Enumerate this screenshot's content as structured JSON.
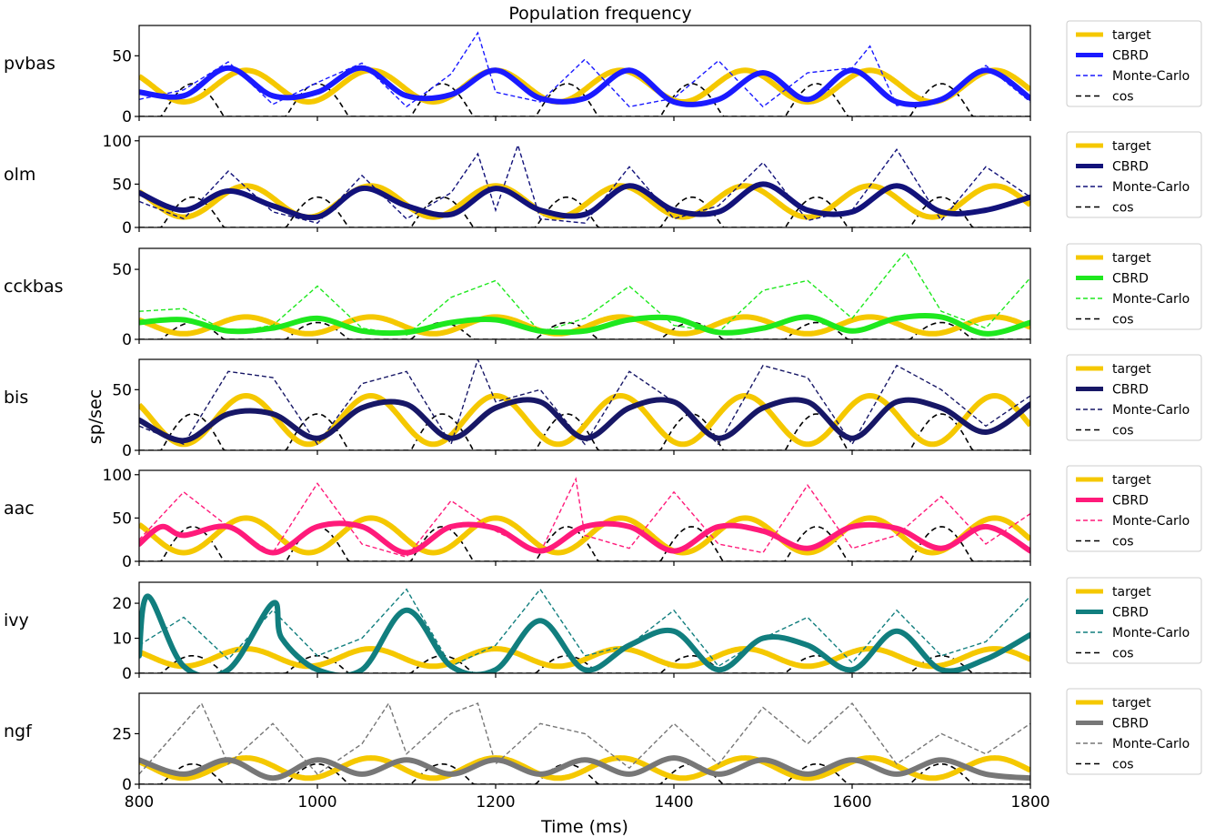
{
  "chart_data": {
    "type": "line",
    "title": "Population frequency",
    "xlabel": "Time (ms)",
    "ylabel": "sp/sec",
    "xlim": [
      800,
      1800
    ],
    "x_ticks": [
      800,
      1000,
      1200,
      1400,
      1600,
      1800
    ],
    "cos_period_ms": 140,
    "legend_position": "right",
    "series_names": [
      "target",
      "CBRD",
      "Monte-Carlo",
      "cos"
    ],
    "panels": [
      {
        "population": "pvbas",
        "ylim": [
          0,
          75
        ],
        "y_ticks": [
          0,
          50
        ],
        "cbrd_color": "#1a1aff",
        "series": {
          "target": {
            "center": 25,
            "amplitude": 13
          },
          "CBRD": {
            "x": [
              800,
              850,
              900,
              950,
              1000,
              1050,
              1100,
              1150,
              1200,
              1250,
              1300,
              1350,
              1400,
              1450,
              1500,
              1550,
              1600,
              1650,
              1700,
              1750,
              1800
            ],
            "y": [
              20,
              17,
              40,
              17,
              20,
              40,
              17,
              18,
              38,
              15,
              15,
              38,
              12,
              14,
              36,
              14,
              38,
              12,
              14,
              38,
              15
            ]
          },
          "Monte-Carlo": {
            "x": [
              800,
              850,
              900,
              950,
              1000,
              1050,
              1100,
              1150,
              1180,
              1200,
              1250,
              1300,
              1350,
              1400,
              1450,
              1500,
              1550,
              1600,
              1620,
              1650,
              1700,
              1750,
              1800
            ],
            "y": [
              14,
              22,
              45,
              10,
              28,
              44,
              8,
              35,
              69,
              20,
              12,
              47,
              8,
              15,
              46,
              8,
              36,
              40,
              58,
              9,
              14,
              42,
              12
            ]
          },
          "cos": {
            "peak": 27,
            "phase_ms": 860
          }
        }
      },
      {
        "population": "olm",
        "ylim": [
          0,
          105
        ],
        "y_ticks": [
          0,
          50,
          100
        ],
        "cbrd_color": "#12127a",
        "series": {
          "target": {
            "center": 30,
            "amplitude": 18
          },
          "CBRD": {
            "x": [
              800,
              850,
              900,
              950,
              1000,
              1050,
              1100,
              1150,
              1200,
              1250,
              1300,
              1350,
              1400,
              1450,
              1500,
              1550,
              1600,
              1650,
              1700,
              1750,
              1800
            ],
            "y": [
              40,
              20,
              42,
              25,
              12,
              45,
              25,
              15,
              45,
              20,
              15,
              48,
              20,
              18,
              50,
              20,
              18,
              48,
              18,
              20,
              35
            ]
          },
          "Monte-Carlo": {
            "x": [
              800,
              850,
              900,
              950,
              1000,
              1050,
              1100,
              1150,
              1180,
              1200,
              1225,
              1250,
              1300,
              1350,
              1400,
              1450,
              1500,
              1550,
              1600,
              1650,
              1700,
              1750,
              1800
            ],
            "y": [
              30,
              10,
              65,
              18,
              5,
              60,
              10,
              40,
              85,
              20,
              95,
              10,
              5,
              70,
              10,
              25,
              75,
              8,
              20,
              90,
              8,
              70,
              35
            ]
          },
          "cos": {
            "peak": 35,
            "phase_ms": 860
          }
        }
      },
      {
        "population": "cckbas",
        "ylim": [
          0,
          65
        ],
        "y_ticks": [
          0,
          50
        ],
        "cbrd_color": "#1ee81e",
        "series": {
          "target": {
            "center": 10,
            "amplitude": 6
          },
          "CBRD": {
            "x": [
              800,
              850,
              900,
              950,
              1000,
              1050,
              1100,
              1150,
              1200,
              1250,
              1300,
              1350,
              1400,
              1450,
              1500,
              1550,
              1600,
              1650,
              1700,
              1750,
              1800
            ],
            "y": [
              12,
              14,
              6,
              8,
              15,
              6,
              5,
              12,
              14,
              6,
              6,
              14,
              15,
              5,
              8,
              16,
              6,
              15,
              16,
              4,
              12
            ]
          },
          "Monte-Carlo": {
            "x": [
              800,
              850,
              900,
              950,
              1000,
              1050,
              1100,
              1150,
              1200,
              1250,
              1300,
              1350,
              1400,
              1450,
              1500,
              1550,
              1600,
              1650,
              1660,
              1700,
              1750,
              1800
            ],
            "y": [
              20,
              22,
              5,
              10,
              38,
              8,
              3,
              30,
              42,
              5,
              15,
              38,
              10,
              5,
              35,
              42,
              15,
              55,
              62,
              20,
              8,
              44
            ]
          },
          "cos": {
            "peak": 12,
            "phase_ms": 860
          }
        }
      },
      {
        "population": "bis",
        "ylim": [
          0,
          75
        ],
        "y_ticks": [
          0,
          50
        ],
        "cbrd_color": "#171766",
        "series": {
          "target": {
            "center": 25,
            "amplitude": 20
          },
          "CBRD": {
            "x": [
              800,
              850,
              900,
              950,
              1000,
              1050,
              1100,
              1150,
              1200,
              1250,
              1300,
              1350,
              1400,
              1450,
              1500,
              1550,
              1600,
              1650,
              1700,
              1750,
              1800
            ],
            "y": [
              25,
              8,
              30,
              30,
              10,
              35,
              38,
              10,
              35,
              40,
              10,
              35,
              40,
              10,
              35,
              40,
              10,
              40,
              35,
              15,
              38
            ]
          },
          "Monte-Carlo": {
            "x": [
              800,
              850,
              900,
              950,
              1000,
              1050,
              1100,
              1150,
              1180,
              1200,
              1250,
              1300,
              1350,
              1400,
              1450,
              1500,
              1550,
              1600,
              1650,
              1700,
              1750,
              1800
            ],
            "y": [
              20,
              5,
              65,
              60,
              5,
              55,
              65,
              5,
              75,
              40,
              50,
              5,
              65,
              40,
              5,
              70,
              60,
              5,
              70,
              50,
              20,
              45
            ]
          },
          "cos": {
            "peak": 30,
            "phase_ms": 860
          }
        }
      },
      {
        "population": "aac",
        "ylim": [
          0,
          105
        ],
        "y_ticks": [
          0,
          50,
          100
        ],
        "cbrd_color": "#ff1a7a",
        "series": {
          "target": {
            "center": 30,
            "amplitude": 20
          },
          "CBRD": {
            "x": [
              800,
              825,
              850,
              900,
              950,
              1000,
              1050,
              1100,
              1150,
              1200,
              1250,
              1300,
              1350,
              1400,
              1450,
              1500,
              1550,
              1600,
              1650,
              1700,
              1750,
              1800
            ],
            "y": [
              20,
              40,
              30,
              40,
              10,
              40,
              40,
              10,
              40,
              38,
              12,
              40,
              40,
              12,
              40,
              35,
              15,
              40,
              38,
              15,
              40,
              12
            ]
          },
          "Monte-Carlo": {
            "x": [
              800,
              850,
              900,
              950,
              1000,
              1050,
              1100,
              1150,
              1200,
              1250,
              1290,
              1300,
              1350,
              1400,
              1450,
              1500,
              1550,
              1600,
              1650,
              1700,
              1750,
              1800
            ],
            "y": [
              25,
              80,
              40,
              10,
              90,
              20,
              5,
              70,
              35,
              10,
              95,
              30,
              15,
              80,
              20,
              10,
              88,
              15,
              30,
              75,
              20,
              55
            ]
          },
          "cos": {
            "peak": 40,
            "phase_ms": 860
          }
        }
      },
      {
        "population": "ivy",
        "ylim": [
          0,
          26
        ],
        "y_ticks": [
          0,
          10,
          20
        ],
        "cbrd_color": "#117e7e",
        "series": {
          "target": {
            "center": 4.5,
            "amplitude": 2.5
          },
          "CBRD": {
            "x": [
              800,
              810,
              850,
              900,
              950,
              960,
              1000,
              1050,
              1100,
              1150,
              1200,
              1250,
              1300,
              1350,
              1400,
              1450,
              1500,
              1550,
              1600,
              1650,
              1700,
              1750,
              1800
            ],
            "y": [
              5,
              22,
              2,
              1,
              20,
              10,
              1,
              1,
              18,
              2,
              1,
              15,
              1,
              8,
              12,
              1,
              10,
              8,
              1,
              12,
              1,
              4,
              11
            ]
          },
          "Monte-Carlo": {
            "x": [
              800,
              850,
              900,
              950,
              1000,
              1050,
              1100,
              1150,
              1200,
              1250,
              1300,
              1350,
              1400,
              1450,
              1500,
              1550,
              1600,
              1650,
              1700,
              1750,
              1800
            ],
            "y": [
              8,
              16,
              4,
              18,
              5,
              10,
              24,
              2,
              8,
              24,
              5,
              8,
              18,
              2,
              10,
              16,
              3,
              18,
              5,
              9,
              22
            ]
          },
          "cos": {
            "peak": 5,
            "phase_ms": 860
          }
        }
      },
      {
        "population": "ngf",
        "ylim": [
          0,
          45
        ],
        "y_ticks": [
          0,
          25
        ],
        "cbrd_color": "#777777",
        "series": {
          "target": {
            "center": 8,
            "amplitude": 5
          },
          "CBRD": {
            "x": [
              800,
              850,
              900,
              950,
              1000,
              1050,
              1100,
              1150,
              1200,
              1250,
              1300,
              1350,
              1400,
              1450,
              1500,
              1550,
              1600,
              1650,
              1700,
              1750,
              1800
            ],
            "y": [
              12,
              5,
              12,
              3,
              12,
              5,
              12,
              5,
              12,
              5,
              12,
              5,
              13,
              5,
              12,
              5,
              12,
              5,
              12,
              5,
              3
            ]
          },
          "Monte-Carlo": {
            "x": [
              800,
              840,
              870,
              900,
              950,
              1000,
              1050,
              1080,
              1100,
              1150,
              1180,
              1200,
              1250,
              1300,
              1350,
              1400,
              1450,
              1500,
              1550,
              1600,
              1650,
              1700,
              1750,
              1800
            ],
            "y": [
              5,
              25,
              40,
              10,
              30,
              5,
              20,
              40,
              15,
              35,
              40,
              10,
              30,
              25,
              8,
              30,
              10,
              38,
              20,
              40,
              10,
              25,
              15,
              30
            ]
          },
          "cos": {
            "peak": 10,
            "phase_ms": 860
          }
        }
      }
    ]
  }
}
